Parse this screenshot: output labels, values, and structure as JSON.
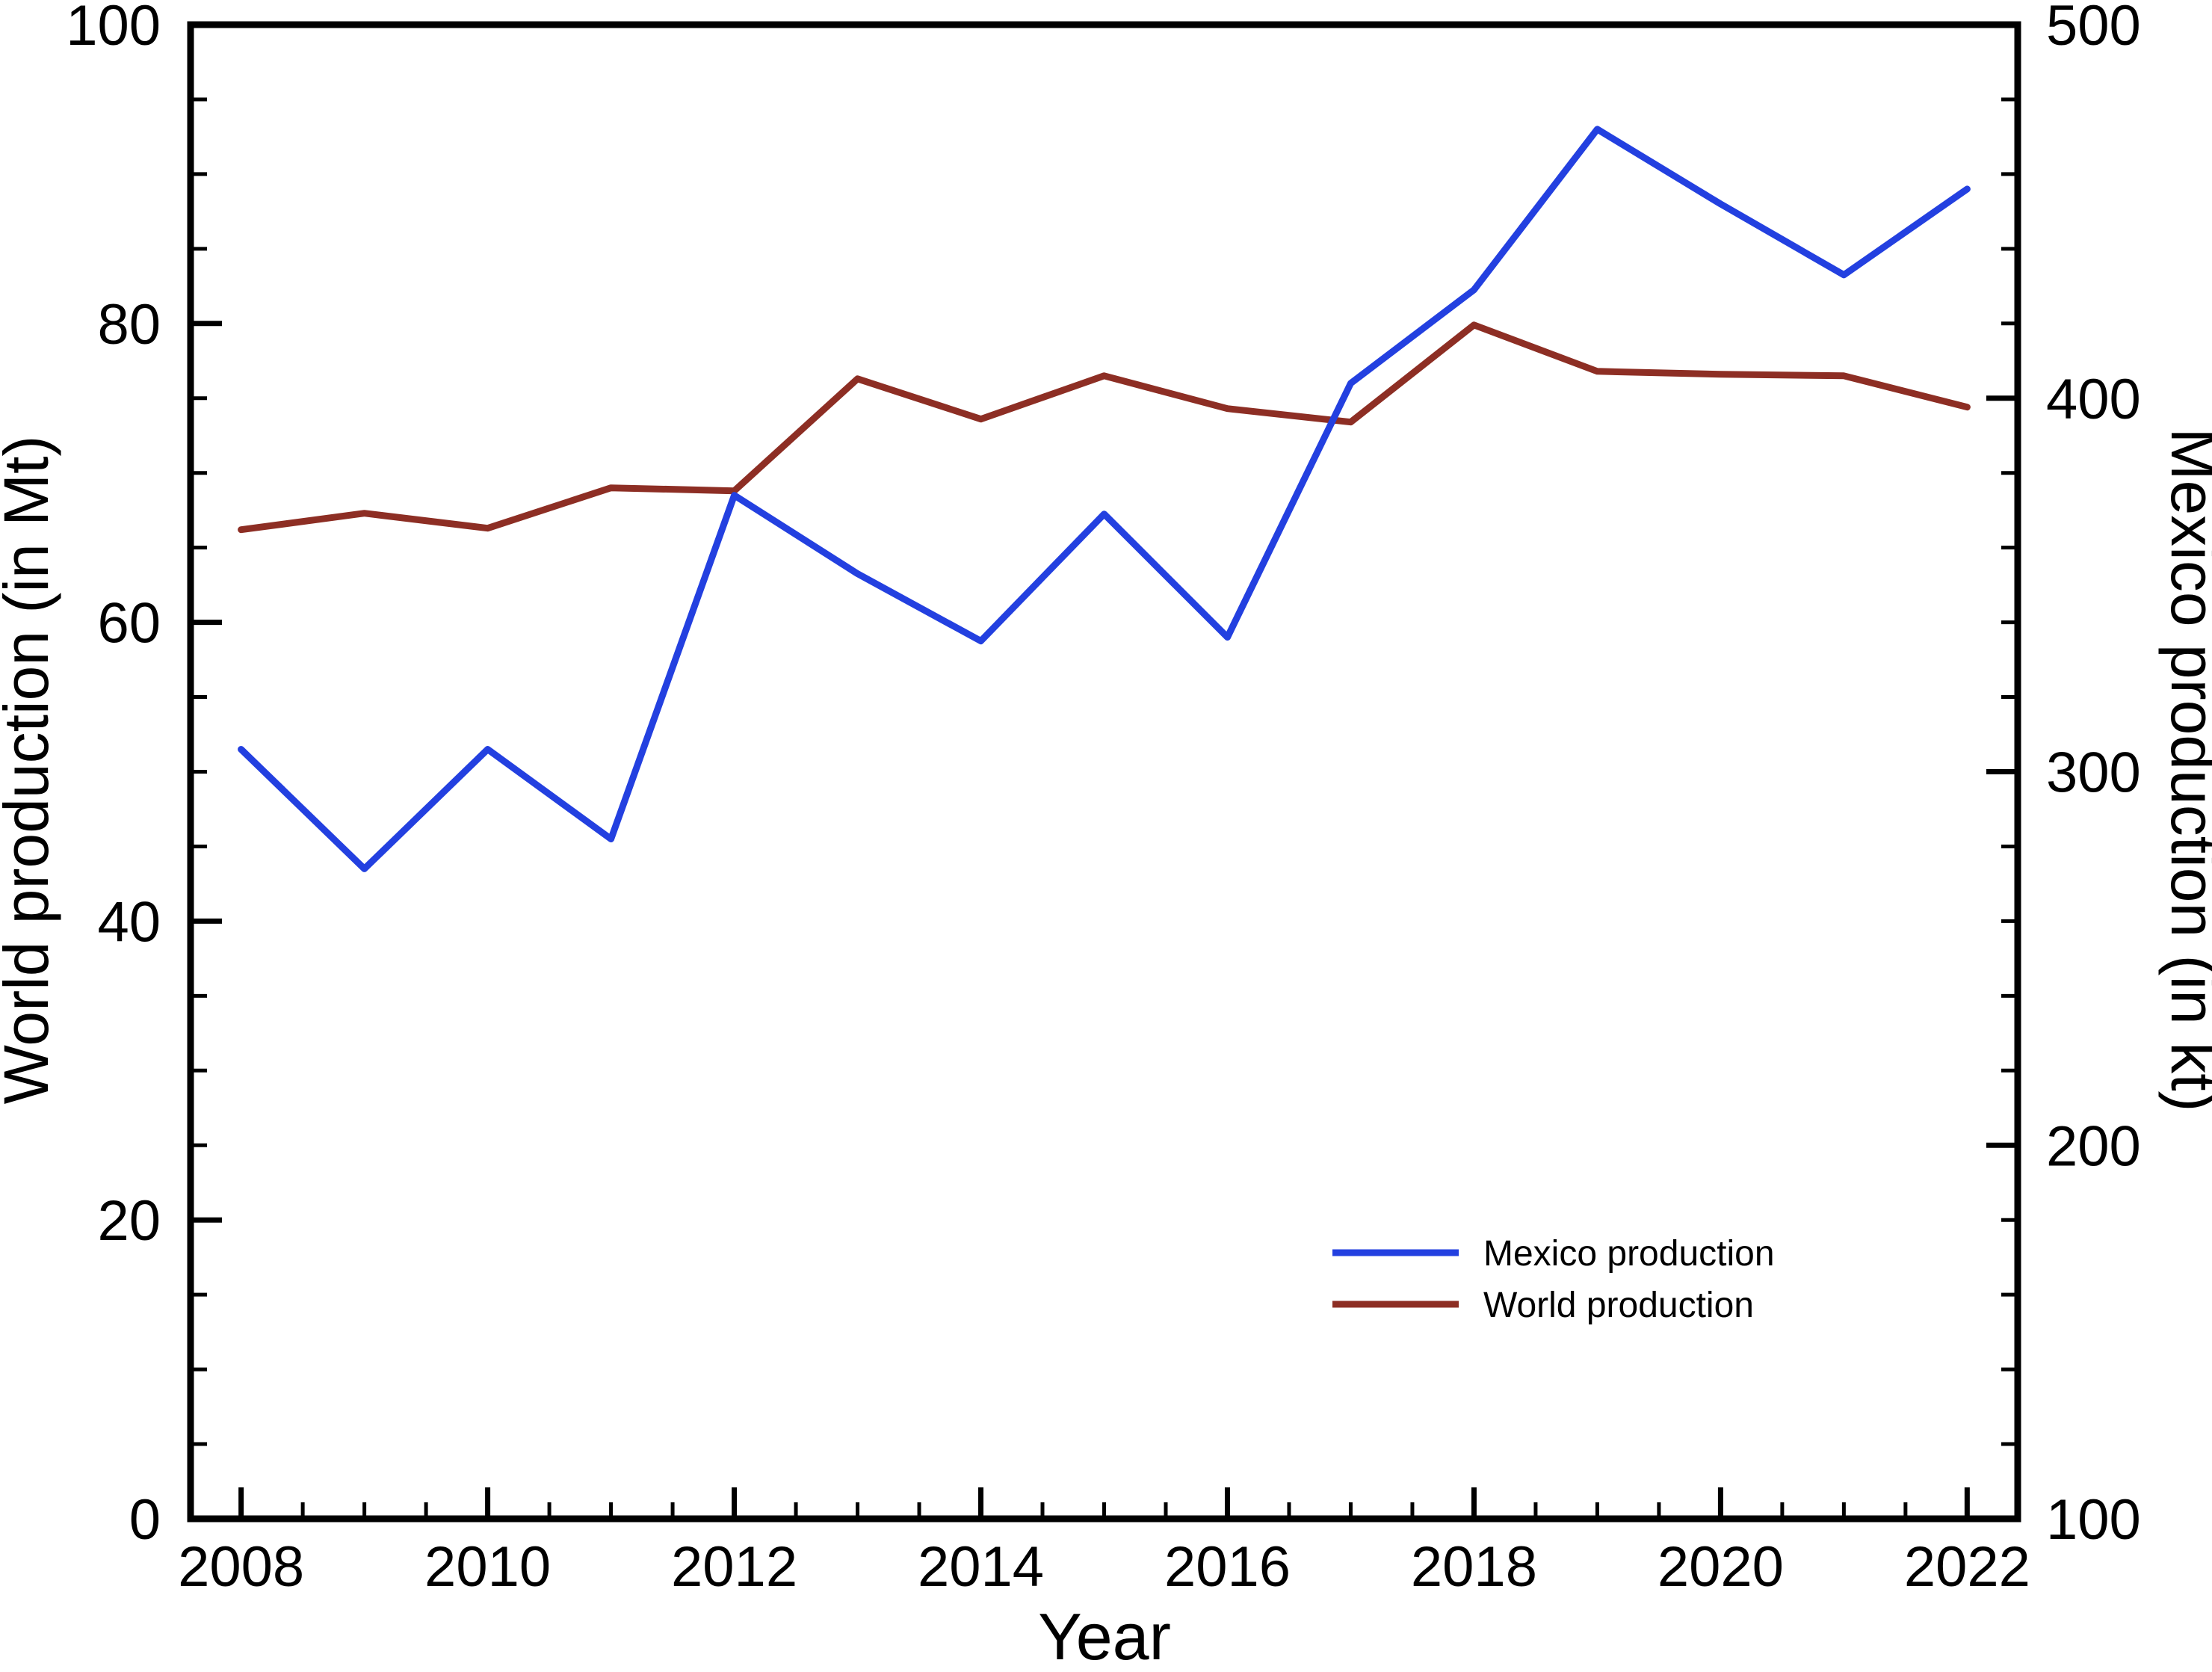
{
  "chart_data": {
    "type": "line",
    "title": "",
    "xlabel": "Year",
    "x": [
      2008,
      2009,
      2010,
      2011,
      2012,
      2013,
      2014,
      2015,
      2016,
      2017,
      2018,
      2019,
      2020,
      2021,
      2022
    ],
    "x_major_ticks": [
      2008,
      2010,
      2012,
      2014,
      2016,
      2018,
      2020,
      2022
    ],
    "x_minor_step": 0.5,
    "x_range": [
      2007.59,
      2022.41
    ],
    "grid": false,
    "axes": {
      "left": {
        "label": "World production (in Mt)",
        "range": [
          0,
          100
        ],
        "major_ticks": [
          0,
          20,
          40,
          60,
          80,
          100
        ],
        "minor_step": 5
      },
      "right": {
        "label": "Mexico production (in kt)",
        "range": [
          100,
          500
        ],
        "major_ticks": [
          100,
          200,
          300,
          400,
          500
        ],
        "minor_step": 20
      }
    },
    "series": [
      {
        "name": "World production",
        "axis": "left",
        "color": "#8d2e24",
        "values": [
          66.2,
          67.3,
          66.3,
          69.0,
          68.8,
          76.3,
          73.6,
          76.5,
          74.3,
          73.4,
          79.9,
          76.8,
          76.6,
          76.5,
          74.4
        ]
      },
      {
        "name": "Mexico production",
        "axis": "right",
        "color": "#2340e0",
        "values": [
          306,
          274,
          306,
          282,
          374,
          353,
          335,
          369,
          336,
          404,
          429,
          472,
          452,
          433,
          456
        ]
      }
    ],
    "legend": {
      "position": "lower right",
      "entries": [
        "Mexico production",
        "World production"
      ]
    }
  }
}
